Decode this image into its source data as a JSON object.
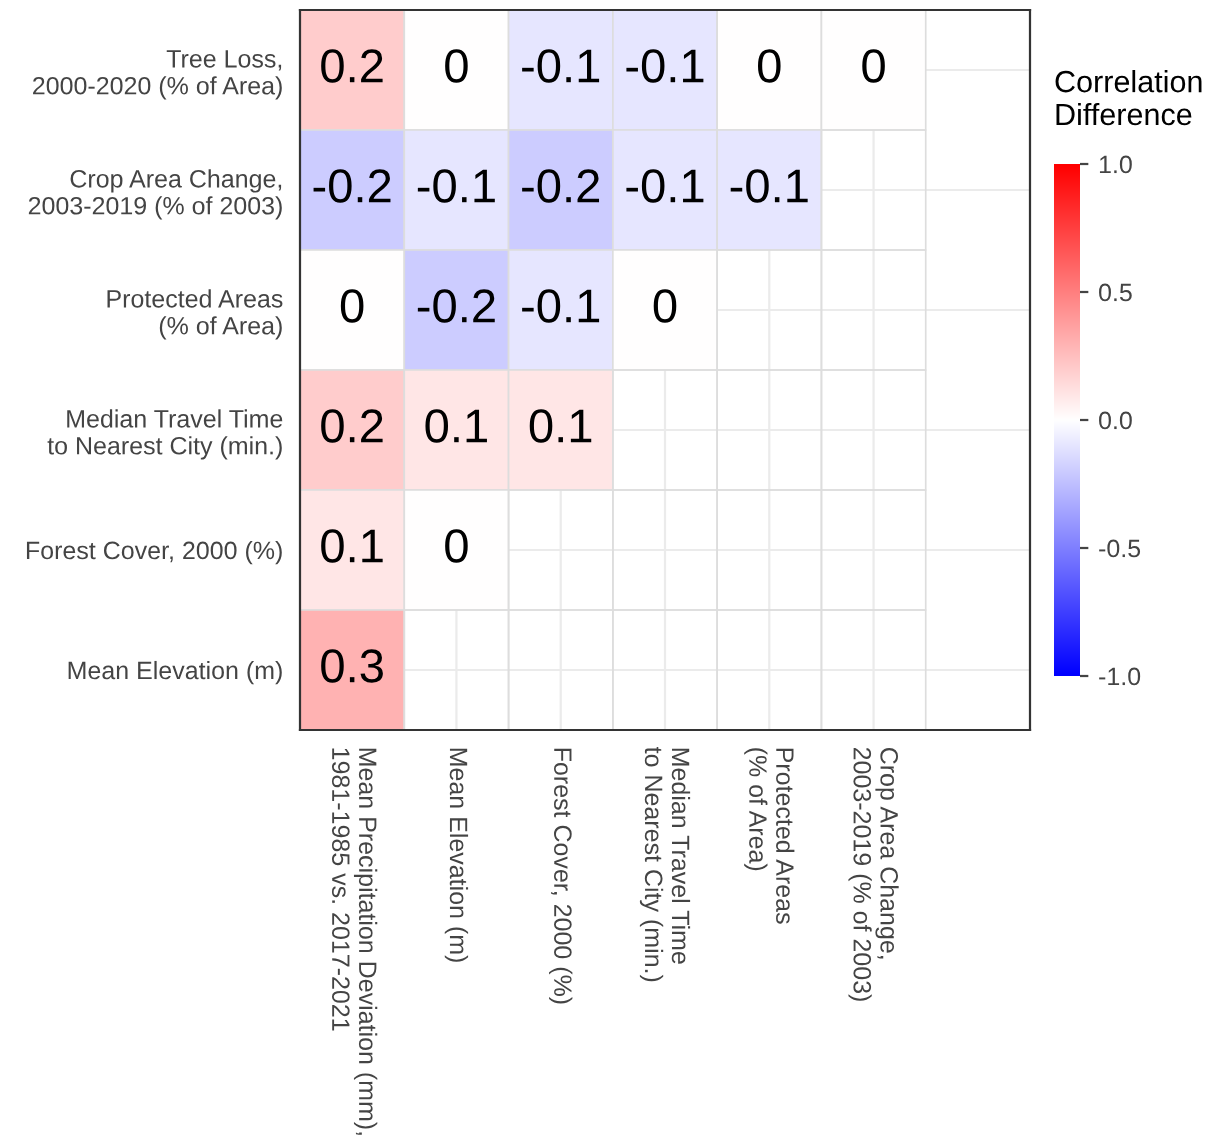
{
  "chart_data": {
    "type": "heatmap",
    "categories": [
      "Mean Precipitation Deviation (mm),\n1981-1985 vs. 2017-2021",
      "Mean Elevation (m)",
      "Forest Cover, 2000 (%)",
      "Median Travel Time\nto Nearest City (min.)",
      "Protected Areas\n(% of Area)",
      "Crop Area Change,\n2003-2019 (% of 2003)"
    ],
    "y_categories": [
      "Tree Loss,\n2000-2020 (% of Area)",
      "Crop Area Change,\n2003-2019 (% of 2003)",
      "Protected Areas\n(% of Area)",
      "Median Travel Time\nto Nearest City (min.)",
      "Forest Cover, 2000 (%)",
      "Mean Elevation (m)"
    ],
    "cells": [
      [
        0.2,
        0,
        -0.1,
        -0.1,
        0,
        0
      ],
      [
        -0.2,
        -0.1,
        -0.2,
        -0.1,
        -0.1,
        null
      ],
      [
        0,
        -0.2,
        -0.1,
        0,
        null,
        null
      ],
      [
        0.2,
        0.1,
        0.1,
        null,
        null,
        null
      ],
      [
        0.1,
        0,
        null,
        null,
        null,
        null
      ],
      [
        0.3,
        null,
        null,
        null,
        null,
        null
      ]
    ],
    "data_labels": true,
    "clabel": "Correlation\nDifference",
    "clim": [
      -1,
      1
    ],
    "cticks": [
      {
        "value": -1,
        "label": "-1.0"
      },
      {
        "value": -0.5,
        "label": "-0.5"
      },
      {
        "value": 0,
        "label": "0.0"
      },
      {
        "value": 0.5,
        "label": "0.5"
      },
      {
        "value": 1,
        "label": "1.0"
      }
    ],
    "grid": true
  }
}
